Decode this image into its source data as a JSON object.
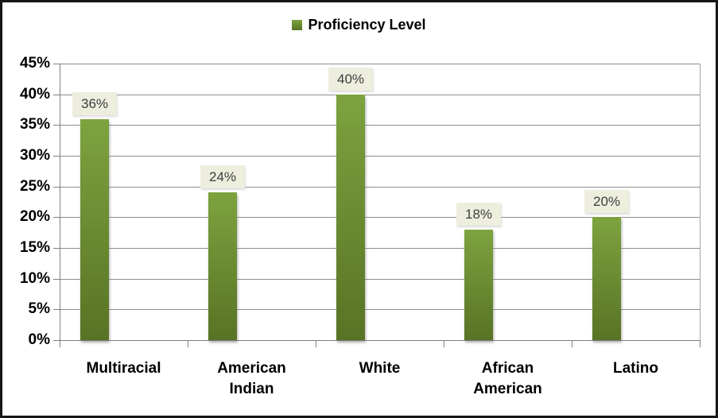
{
  "chart_data": {
    "type": "bar",
    "title": "",
    "legend": {
      "label": "Proficiency Level",
      "position": "top-center"
    },
    "categories": [
      "Multiracial",
      "American Indian",
      "White",
      "African American",
      "Latino"
    ],
    "series": [
      {
        "name": "Proficiency Level",
        "values": [
          36,
          24,
          40,
          18,
          20
        ]
      }
    ],
    "data_labels": [
      "36%",
      "24%",
      "40%",
      "18%",
      "20%"
    ],
    "y_axis": {
      "min": 0,
      "max": 45,
      "step": 5,
      "tick_labels": [
        "0%",
        "5%",
        "10%",
        "15%",
        "20%",
        "25%",
        "30%",
        "35%",
        "40%",
        "45%"
      ]
    },
    "grid": true,
    "colors": {
      "bar_top": "#7da33f",
      "bar_bottom": "#587325",
      "legend_swatch": "#76973b",
      "label_box_bg": "#eeeedf",
      "label_box_text": "#3d3d3d",
      "gridline": "#8e8e8e",
      "axis": "#7f7f7f",
      "text": "#000000"
    }
  }
}
